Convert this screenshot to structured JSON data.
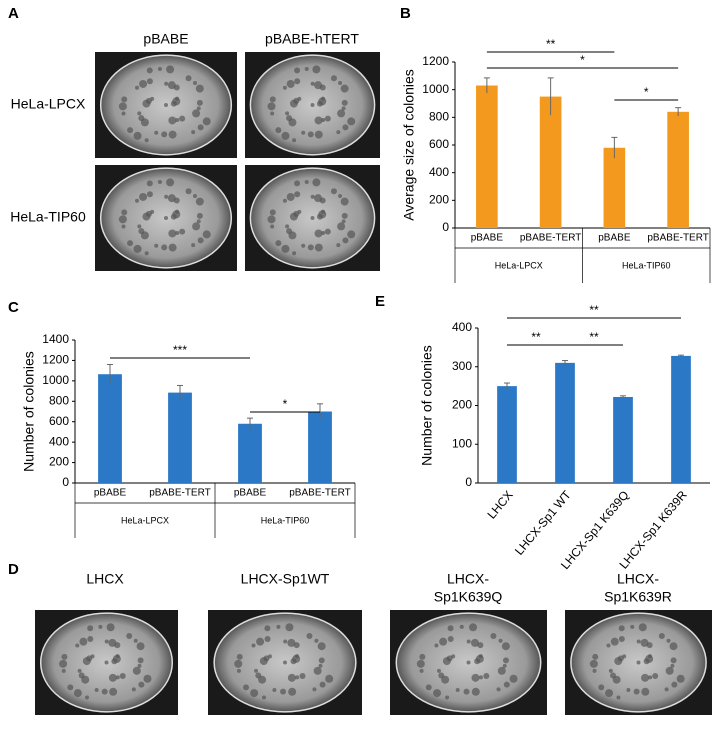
{
  "panel_a": {
    "label": "A",
    "columns": [
      "pBABE",
      "pBABE-hTERT"
    ],
    "rows": [
      "HeLa-LPCX",
      "HeLa-TIP60"
    ]
  },
  "panel_d": {
    "label": "D",
    "columns": [
      [
        "LHCX"
      ],
      [
        "LHCX-Sp1WT"
      ],
      [
        "LHCX-",
        "Sp1K639Q"
      ],
      [
        "LHCX-",
        "Sp1K639R"
      ]
    ]
  },
  "chart_data": [
    {
      "type": "bar",
      "label": "B",
      "ylabel": "Average size of colonies",
      "color": "#f39a1e",
      "categories": [
        "pBABE",
        "pBABE-TERT",
        "pBABE",
        "pBABE-TERT"
      ],
      "groups": [
        "HeLa-LPCX",
        "HeLa-TIP60"
      ],
      "values": [
        1030,
        950,
        580,
        840
      ],
      "errors": [
        55,
        135,
        75,
        30
      ],
      "ylim": [
        0,
        1200
      ],
      "yticks": [
        0,
        200,
        400,
        600,
        800,
        1000,
        1200
      ],
      "annotations": [
        {
          "text": "**",
          "from": 0,
          "to": 2
        },
        {
          "text": "*",
          "from": 0,
          "to": 3
        },
        {
          "text": "*",
          "from": 2,
          "to": 3
        }
      ]
    },
    {
      "type": "bar",
      "label": "C",
      "ylabel": "Number of colonies",
      "color": "#2a78c6",
      "categories": [
        "pBABE",
        "pBABE-TERT",
        "pBABE",
        "pBABE-TERT"
      ],
      "groups": [
        "HeLa-LPCX",
        "HeLa-TIP60"
      ],
      "values": [
        1065,
        885,
        580,
        700
      ],
      "errors": [
        95,
        70,
        55,
        75
      ],
      "ylim": [
        0,
        1400
      ],
      "yticks": [
        0,
        200,
        400,
        600,
        800,
        1000,
        1200,
        1400
      ],
      "annotations": [
        {
          "text": "***",
          "from": 0,
          "to": 2
        },
        {
          "text": "*",
          "from": 2,
          "to": 3
        }
      ]
    },
    {
      "type": "bar",
      "label": "E",
      "ylabel": "Number of colonies",
      "color": "#2a78c6",
      "categories": [
        "LHCX",
        "LHCX-Sp1 WT",
        "LHCX-Sp1 K639Q",
        "LHCX-Sp1 K639R"
      ],
      "values": [
        250,
        310,
        222,
        328
      ],
      "errors": [
        8,
        6,
        3,
        2
      ],
      "ylim": [
        0,
        400
      ],
      "yticks": [
        0,
        100,
        200,
        300,
        400
      ],
      "annotations": [
        {
          "text": "**",
          "from": 0,
          "to": 3
        },
        {
          "text": "**",
          "from": 0,
          "to": 1
        },
        {
          "text": "**",
          "from": 1,
          "to": 2
        }
      ]
    }
  ]
}
